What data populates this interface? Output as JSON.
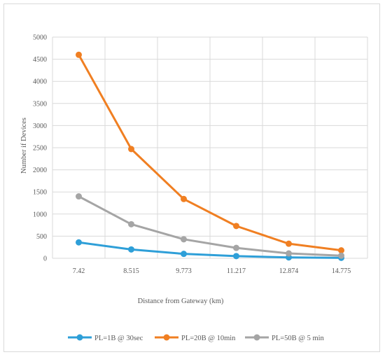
{
  "chart_data": {
    "type": "line",
    "title": "",
    "xlabel": "Distance from Gateway (km)",
    "ylabel": "Number if Devices",
    "categories": [
      "7.42",
      "8.515",
      "9.773",
      "11.217",
      "12.874",
      "14.775"
    ],
    "ylim": [
      0,
      5000
    ],
    "yticks": [
      "0",
      "500",
      "1000",
      "1500",
      "2000",
      "2500",
      "3000",
      "3500",
      "4000",
      "4500",
      "5000"
    ],
    "grid": true,
    "legend_position": "bottom",
    "series": [
      {
        "name": "PL=1B @ 30sec",
        "color": "#2e9fd8",
        "values": [
          360,
          200,
          100,
          50,
          20,
          10
        ]
      },
      {
        "name": "PL=20B @ 10min",
        "color": "#f07f22",
        "values": [
          4600,
          2470,
          1340,
          730,
          330,
          180
        ]
      },
      {
        "name": "PL=50B @ 5 min",
        "color": "#a5a5a5",
        "values": [
          1400,
          770,
          430,
          235,
          110,
          60
        ]
      }
    ]
  }
}
